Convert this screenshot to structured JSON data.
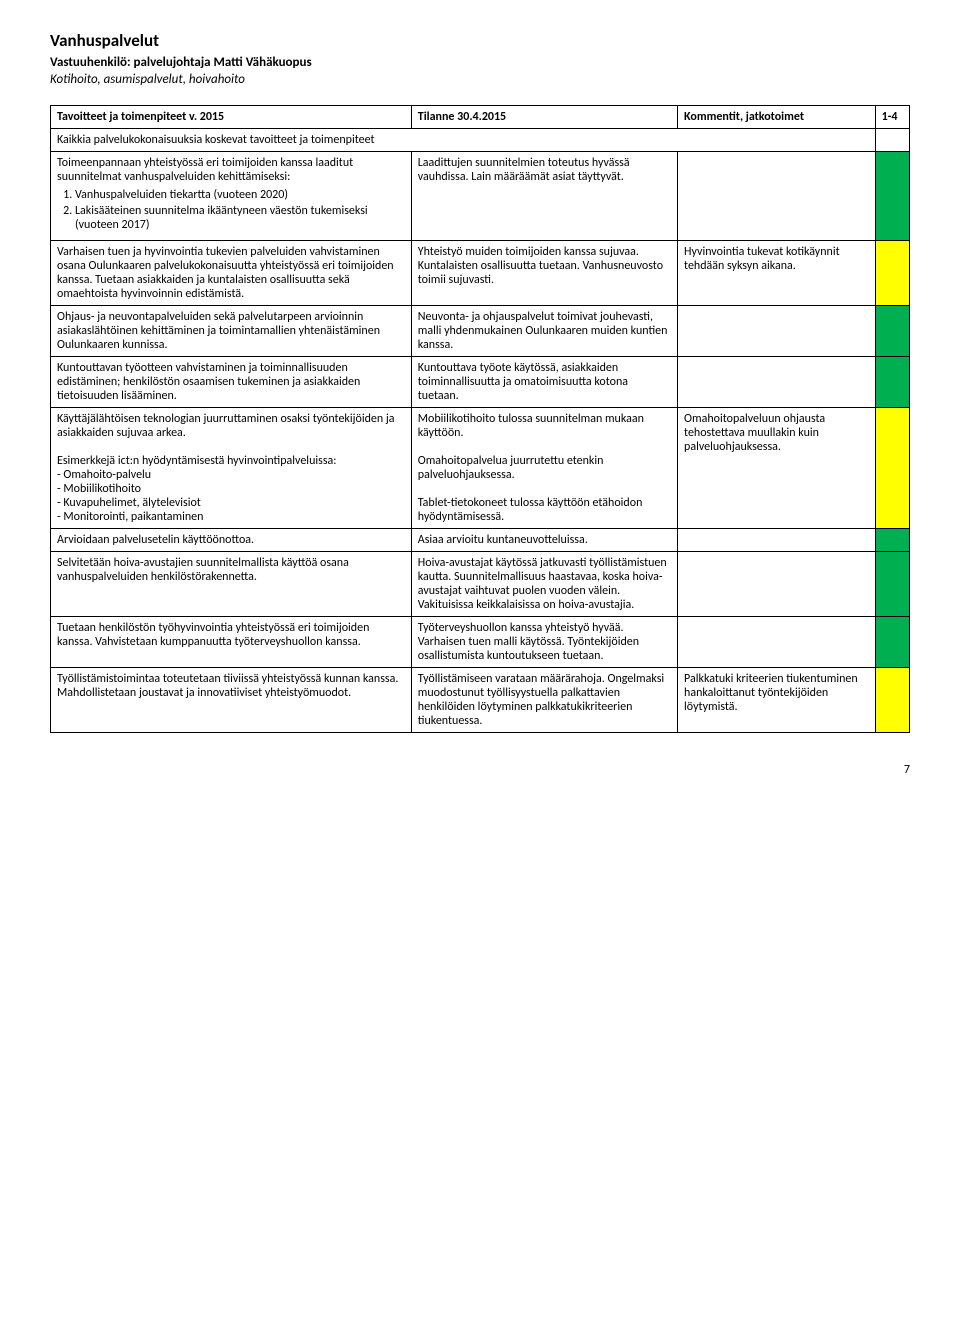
{
  "header": {
    "title": "Vanhuspalvelut",
    "responsible": "Vastuuhenkilö: palvelujohtaja Matti Vähäkuopus",
    "scope": "Kotihoito, asumispalvelut, hoivahoito"
  },
  "table": {
    "headers": {
      "col1": "Tavoitteet ja toimenpiteet v. 2015",
      "col2": "Tilanne 30.4.2015",
      "col3": "Kommentit, jatkotoimet",
      "col4": "1-4"
    },
    "section_label": "Kaikkia palvelukokonaisuuksia koskevat tavoitteet ja toimenpiteet",
    "rows": [
      {
        "left_intro": "Toimeenpannaan yhteistyössä eri toimijoiden kanssa laaditut suunnitelmat vanhuspalveluiden kehittämiseksi:",
        "left_items": [
          "Vanhuspalveluiden tiekartta (vuoteen 2020)",
          "Lakisääteinen suunnitelma ikääntyneen väestön tukemiseksi (vuoteen 2017)"
        ],
        "mid": "Laadittujen suunnitelmien toteutus hyvässä vauhdissa. Lain määräämät asiat täyttyvät.",
        "right": "",
        "status": "green"
      },
      {
        "left": "Varhaisen tuen ja hyvinvointia tukevien palveluiden vahvistaminen osana Oulunkaaren palvelukokonaisuutta yhteistyössä eri toimijoiden kanssa. Tuetaan asiakkaiden ja kuntalaisten osallisuutta sekä omaehtoista hyvinvoinnin edistämistä.",
        "mid": "Yhteistyö muiden toimijoiden kanssa sujuvaa. Kuntalaisten osallisuutta tuetaan. Vanhusneuvosto toimii sujuvasti.",
        "right": "Hyvinvointia tukevat kotikäynnit tehdään syksyn aikana.",
        "status": "yellow"
      },
      {
        "left": "Ohjaus- ja neuvontapalveluiden sekä palvelutarpeen arvioinnin asiakaslähtöinen kehittäminen ja toimintamallien yhtenäistäminen Oulunkaaren kunnissa.",
        "mid": "Neuvonta- ja ohjauspalvelut toimivat jouhevasti, malli yhdenmukainen Oulunkaaren muiden kuntien kanssa.",
        "right": "",
        "status": "green"
      },
      {
        "left": "Kuntouttavan työotteen vahvistaminen ja toiminnallisuuden edistäminen; henkilöstön osaamisen tukeminen ja asiakkaiden tietoisuuden lisääminen.",
        "mid": "Kuntouttava työote käytössä, asiakkaiden toiminnallisuutta ja omatoimisuutta kotona tuetaan.",
        "right": "",
        "status": "green"
      },
      {
        "left_a": "Käyttäjälähtöisen teknologian juurruttaminen osaksi työntekijöiden ja asiakkaiden sujuvaa arkea.",
        "left_b": "Esimerkkejä ict:n hyödyntämisestä hyvinvointipalveluissa:",
        "left_bullets": [
          "- Omahoito-palvelu",
          "- Mobiilikotihoito",
          "- Kuvapuhelimet, älytelevisiot",
          "- Monitorointi, paikantaminen"
        ],
        "mid_a": "Mobiilikotihoito tulossa suunnitelman mukaan käyttöön.",
        "mid_b": "Omahoitopalvelua juurrutettu etenkin palveluohjauksessa.",
        "mid_c": "Tablet-tietokoneet tulossa käyttöön etähoidon hyödyntämisessä.",
        "right": "Omahoitopalveluun ohjausta tehostettava muullakin kuin palveluohjauksessa.",
        "status": "yellow"
      },
      {
        "left": "Arvioidaan palvelusetelin käyttöönottoa.",
        "mid": "Asiaa arvioitu kuntaneuvotteluissa.",
        "right": "",
        "status": "green"
      },
      {
        "left": "Selvitetään hoiva-avustajien suunnitelmallista käyttöä osana vanhuspalveluiden henkilöstörakennetta.",
        "mid": "Hoiva-avustajat käytössä jatkuvasti työllistämistuen kautta. Suunnitelmallisuus haastavaa, koska hoiva-avustajat vaihtuvat puolen vuoden välein. Vakituisissa keikkalaisissa on hoiva-avustajia.",
        "right": "",
        "status": "green"
      },
      {
        "left": "Tuetaan henkilöstön työhyvinvointia yhteistyössä eri toimijoiden kanssa. Vahvistetaan kumppanuutta työterveyshuollon kanssa.",
        "mid": "Työterveyshuollon kanssa yhteistyö hyvää. Varhaisen tuen malli käytössä. Työntekijöiden osallistumista kuntoutukseen tuetaan.",
        "right": "",
        "status": "green"
      },
      {
        "left": "Työllistämistoimintaa toteutetaan tiiviissä yhteistyössä kunnan kanssa. Mahdollistetaan joustavat ja innovatiiviset yhteistyömuodot.",
        "mid": "Työllistämiseen varataan määrärahoja. Ongelmaksi muodostunut työllisyystuella palkattavien henkilöiden löytyminen palkkatukikriteerien tiukentuessa.",
        "right": "Palkkatuki kriteerien tiukentuminen hankaloittanut työntekijöiden löytymistä.",
        "status": "yellow"
      }
    ]
  },
  "footer": {
    "page": "7"
  },
  "colors": {
    "yellow": "#ffff00",
    "green": "#00b050"
  }
}
